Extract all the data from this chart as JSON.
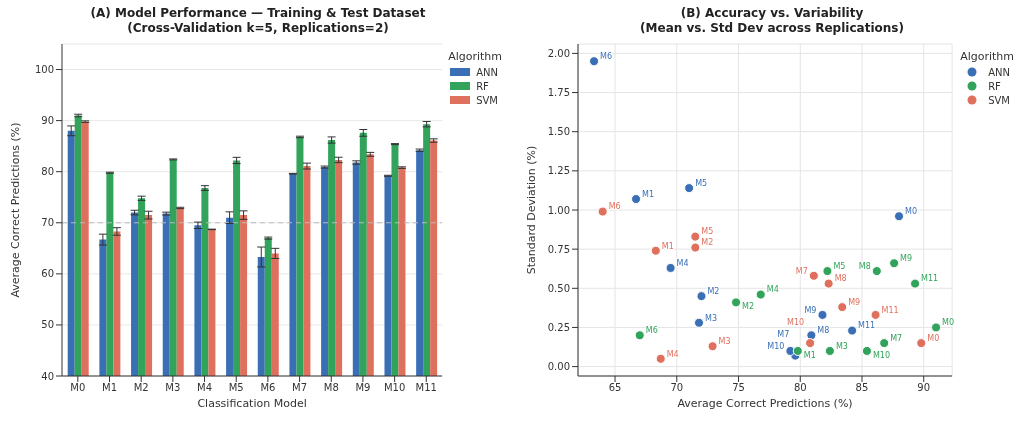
{
  "chart_data": [
    {
      "type": "bar",
      "title": "(A) Model Performance — Training & Test Dataset\n(Cross-Validation k=5, Replications=2)",
      "xlabel": "Classification Model",
      "ylabel": "Average Correct Predictions (%)",
      "legend_title": "Algorithm",
      "legend": "top right",
      "grid": "y",
      "categories": [
        "M0",
        "M1",
        "M2",
        "M3",
        "M4",
        "M5",
        "M6",
        "M7",
        "M8",
        "M9",
        "M10",
        "M11"
      ],
      "ylim": [
        40,
        105
      ],
      "yticks": [
        40,
        50,
        60,
        70,
        80,
        90,
        100
      ],
      "ref_lines": [
        {
          "axis": "y",
          "value": 70,
          "color": "#bbbbbb",
          "line_style": "dashed"
        }
      ],
      "series": [
        {
          "name": "ANN",
          "color": "#3a6fb5",
          "values": [
            88,
            66.7,
            72,
            71.8,
            69.5,
            71,
            63.3,
            79.6,
            80.9,
            81.8,
            79.2,
            84.2
          ],
          "errors": [
            0.96,
            1.07,
            0.45,
            0.28,
            0.63,
            1.14,
            1.95,
            0.07,
            0.2,
            0.33,
            0.1,
            0.23
          ]
        },
        {
          "name": "RF",
          "color": "#31a35b",
          "values": [
            91,
            79.8,
            74.8,
            82.4,
            76.8,
            82.2,
            67,
            86.8,
            86.2,
            87.6,
            85.4,
            89.3
          ],
          "errors": [
            0.25,
            0.1,
            0.41,
            0.1,
            0.46,
            0.61,
            0.2,
            0.15,
            0.61,
            0.66,
            0.1,
            0.53
          ]
        },
        {
          "name": "SVM",
          "color": "#e0705e",
          "values": [
            89.8,
            68.3,
            71.5,
            72.9,
            68.7,
            71.5,
            64,
            81.1,
            82.3,
            83.4,
            80.8,
            86.1
          ],
          "errors": [
            0.15,
            0.74,
            0.76,
            0.13,
            0.05,
            0.83,
            0.99,
            0.58,
            0.53,
            0.38,
            0.15,
            0.33
          ]
        }
      ]
    },
    {
      "type": "scatter",
      "title": "(B) Accuracy vs. Variability\n(Mean vs. Std Dev across Replications)",
      "xlabel": "Average Correct Predictions (%)",
      "ylabel": "Standard Deviation (%)",
      "legend_title": "Algorithm",
      "legend": "top right",
      "grid": true,
      "marker": "circle",
      "xlim": [
        62,
        92.3
      ],
      "xticks": [
        65,
        70,
        75,
        80,
        85,
        90
      ],
      "ylim": [
        -0.06,
        2.06
      ],
      "yticks": [
        {
          "value": 0,
          "label": "0.00"
        },
        {
          "value": 0.25,
          "label": "0.25"
        },
        {
          "value": 0.5,
          "label": "0.50"
        },
        {
          "value": 0.75,
          "label": "0.75"
        },
        {
          "value": 1,
          "label": "1.00"
        },
        {
          "value": 1.25,
          "label": "1.25"
        },
        {
          "value": 1.5,
          "label": "1.50"
        },
        {
          "value": 1.75,
          "label": "1.75"
        },
        {
          "value": 2,
          "label": "2.00"
        }
      ],
      "series": [
        {
          "name": "ANN",
          "color": "#3a6fb5",
          "x": [
            88,
            66.7,
            72,
            71.8,
            69.5,
            71,
            63.3,
            79.6,
            80.9,
            81.8,
            79.2,
            84.2
          ],
          "values": [
            0.96,
            1.07,
            0.45,
            0.28,
            0.63,
            1.14,
            1.95,
            0.07,
            0.2,
            0.33,
            0.1,
            0.23
          ]
        },
        {
          "name": "RF",
          "color": "#31a35b",
          "x": [
            91,
            79.8,
            74.8,
            82.4,
            76.8,
            82.2,
            67,
            86.8,
            86.2,
            87.6,
            85.4,
            89.3
          ],
          "values": [
            0.25,
            0.1,
            0.41,
            0.1,
            0.46,
            0.61,
            0.2,
            0.15,
            0.61,
            0.66,
            0.1,
            0.53
          ]
        },
        {
          "name": "SVM",
          "color": "#e0705e",
          "x": [
            89.8,
            68.3,
            71.5,
            72.9,
            68.7,
            71.5,
            64,
            81.1,
            82.3,
            83.4,
            80.8,
            86.1
          ],
          "values": [
            0.15,
            0.74,
            0.76,
            0.13,
            0.05,
            0.83,
            0.99,
            0.58,
            0.53,
            0.38,
            0.15,
            0.33
          ]
        }
      ],
      "annotations": [
        {
          "text": "M0",
          "x": 88,
          "y": 0.96
        },
        {
          "text": "M1",
          "x": 66.7,
          "y": 1.07
        },
        {
          "text": "M2",
          "x": 72,
          "y": 0.45
        },
        {
          "text": "M3",
          "x": 71.8,
          "y": 0.28
        },
        {
          "text": "M4",
          "x": 69.5,
          "y": 0.63
        },
        {
          "text": "M5",
          "x": 71,
          "y": 1.14
        },
        {
          "text": "M6",
          "x": 63.3,
          "y": 1.95
        },
        {
          "text": "M7",
          "x": 79.6,
          "y": 0.07
        },
        {
          "text": "M8",
          "x": 80.9,
          "y": 0.2
        },
        {
          "text": "M9",
          "x": 81.8,
          "y": 0.33
        },
        {
          "text": "M10",
          "x": 79.2,
          "y": 0.1
        },
        {
          "text": "M11",
          "x": 84.2,
          "y": 0.23
        },
        {
          "text": "M0",
          "x": 91,
          "y": 0.25
        },
        {
          "text": "M1",
          "x": 79.8,
          "y": 0.1
        },
        {
          "text": "M2",
          "x": 74.8,
          "y": 0.41
        },
        {
          "text": "M3",
          "x": 82.4,
          "y": 0.1
        },
        {
          "text": "M4",
          "x": 76.8,
          "y": 0.46
        },
        {
          "text": "M5",
          "x": 82.2,
          "y": 0.61
        },
        {
          "text": "M6",
          "x": 67,
          "y": 0.2
        },
        {
          "text": "M7",
          "x": 86.8,
          "y": 0.15
        },
        {
          "text": "M8",
          "x": 86.2,
          "y": 0.61
        },
        {
          "text": "M9",
          "x": 87.6,
          "y": 0.66
        },
        {
          "text": "M10",
          "x": 85.4,
          "y": 0.1
        },
        {
          "text": "M11",
          "x": 89.3,
          "y": 0.53
        },
        {
          "text": "M0",
          "x": 89.8,
          "y": 0.15
        },
        {
          "text": "M1",
          "x": 68.3,
          "y": 0.74
        },
        {
          "text": "M2",
          "x": 71.5,
          "y": 0.76
        },
        {
          "text": "M3",
          "x": 72.9,
          "y": 0.13
        },
        {
          "text": "M4",
          "x": 68.7,
          "y": 0.05
        },
        {
          "text": "M5",
          "x": 71.5,
          "y": 0.83
        },
        {
          "text": "M6",
          "x": 64,
          "y": 0.99
        },
        {
          "text": "M7",
          "x": 81.1,
          "y": 0.58
        },
        {
          "text": "M8",
          "x": 82.3,
          "y": 0.53
        },
        {
          "text": "M9",
          "x": 83.4,
          "y": 0.38
        },
        {
          "text": "M10",
          "x": 80.8,
          "y": 0.15
        },
        {
          "text": "M11",
          "x": 86.1,
          "y": 0.33
        }
      ]
    }
  ]
}
